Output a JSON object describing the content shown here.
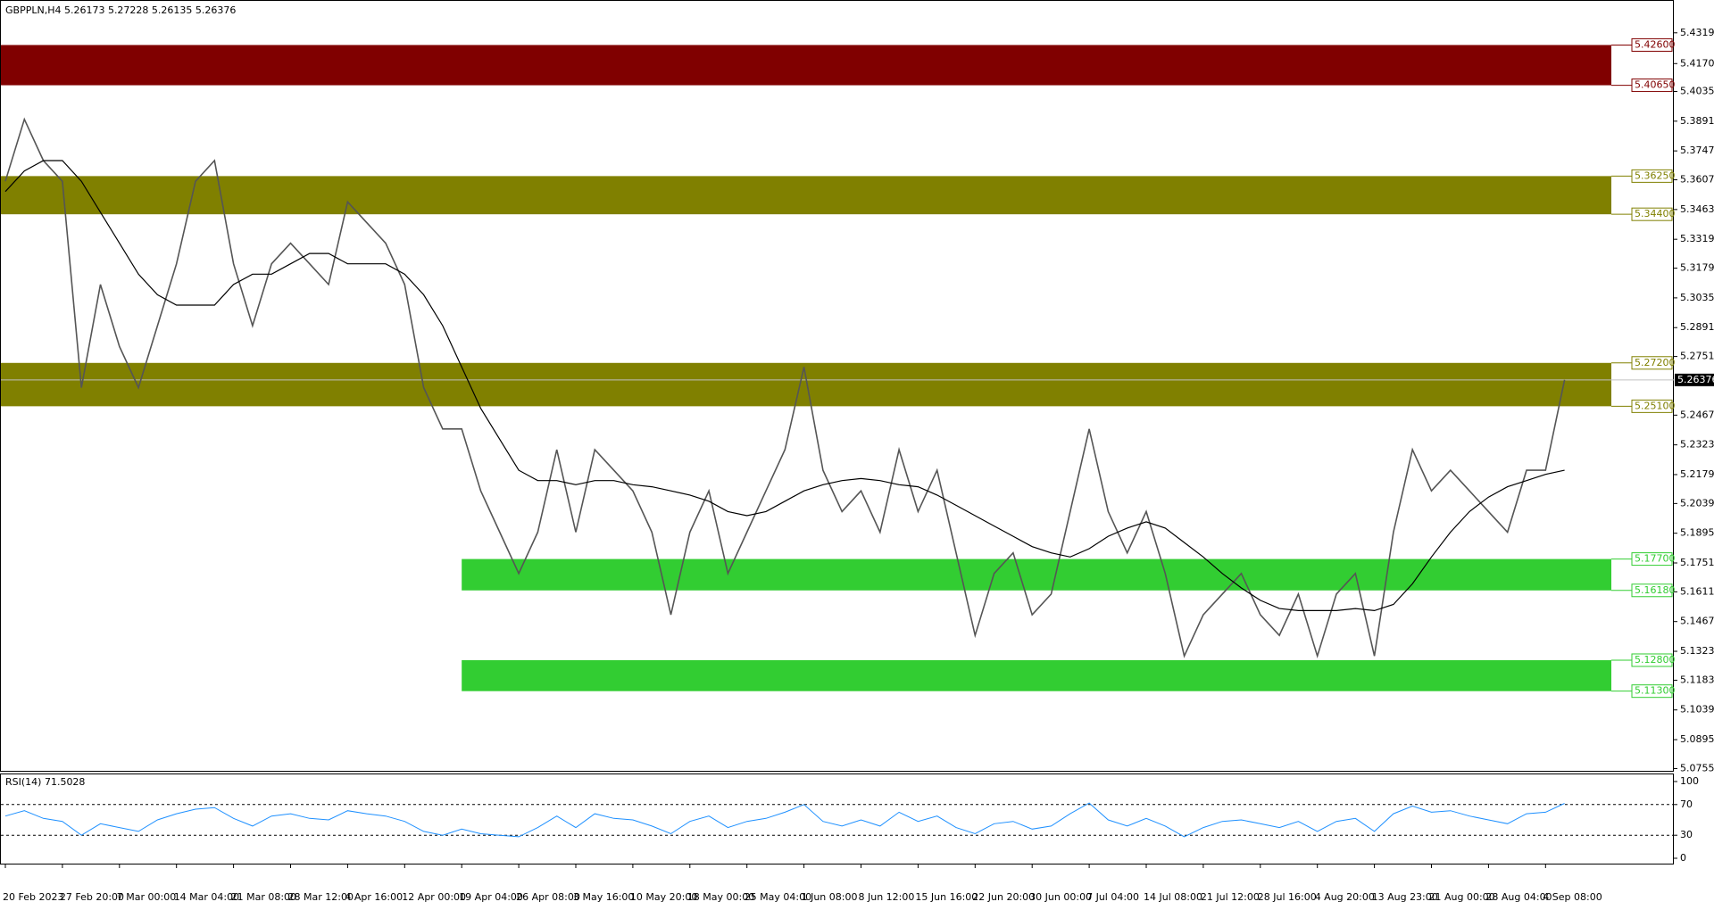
{
  "chart_data": [
    {
      "type": "price",
      "header": "GBPPLN,H4  5.26173 5.27228 5.26135 5.26376",
      "categories": [
        "20 Feb 2023",
        null,
        null,
        "27 Feb 20:00",
        null,
        null,
        "7 Mar 00:00",
        null,
        null,
        "14 Mar 04:00",
        null,
        null,
        "21 Mar 08:00",
        null,
        null,
        "28 Mar 12:00",
        null,
        null,
        "4 Apr 16:00",
        null,
        null,
        "12 Apr 00:00",
        null,
        null,
        "19 Apr 04:00",
        null,
        null,
        "26 Apr 08:00",
        null,
        null,
        "3 May 16:00",
        null,
        null,
        "10 May 20:00",
        null,
        null,
        "18 May 00:00",
        null,
        null,
        "25 May 04:00",
        null,
        null,
        "1 Jun 08:00",
        null,
        null,
        "8 Jun 12:00",
        null,
        null,
        "15 Jun 16:00",
        null,
        null,
        "22 Jun 20:00",
        null,
        null,
        "30 Jun 00:00",
        null,
        null,
        "7 Jul 04:00",
        null,
        null,
        "14 Jul 08:00",
        null,
        null,
        "21 Jul 12:00",
        null,
        null,
        "28 Jul 16:00",
        null,
        null,
        "4 Aug 20:00",
        null,
        null,
        "13 Aug 23:00",
        null,
        null,
        "21 Aug 00:00",
        null,
        null,
        "28 Aug 04:00",
        null,
        null,
        "4 Sep 08:00",
        null
      ],
      "series": [
        {
          "name": "GBPPLN",
          "color": "#555555",
          "values": [
            5.36,
            5.39,
            5.37,
            5.36,
            5.26,
            5.31,
            5.28,
            5.26,
            5.29,
            5.32,
            5.36,
            5.37,
            5.32,
            5.29,
            5.32,
            5.33,
            5.32,
            5.31,
            5.35,
            5.34,
            5.33,
            5.31,
            5.26,
            5.24,
            5.24,
            5.21,
            5.19,
            5.17,
            5.19,
            5.23,
            5.19,
            5.23,
            5.22,
            5.21,
            5.19,
            5.15,
            5.19,
            5.21,
            5.17,
            5.19,
            5.21,
            5.23,
            5.27,
            5.22,
            5.2,
            5.21,
            5.19,
            5.23,
            5.2,
            5.22,
            5.18,
            5.14,
            5.17,
            5.18,
            5.15,
            5.16,
            5.2,
            5.24,
            5.2,
            5.18,
            5.2,
            5.17,
            5.13,
            5.15,
            5.16,
            5.17,
            5.15,
            5.14,
            5.16,
            5.13,
            5.16,
            5.17,
            5.13,
            5.19,
            5.23,
            5.21,
            5.22,
            5.21,
            5.2,
            5.19,
            5.22,
            5.22,
            5.26376
          ]
        },
        {
          "name": "MA",
          "color": "#000000",
          "values": [
            5.355,
            5.365,
            5.37,
            5.37,
            5.36,
            5.345,
            5.33,
            5.315,
            5.305,
            5.3,
            5.3,
            5.3,
            5.31,
            5.315,
            5.315,
            5.32,
            5.325,
            5.325,
            5.32,
            5.32,
            5.32,
            5.315,
            5.305,
            5.29,
            5.27,
            5.25,
            5.235,
            5.22,
            5.215,
            5.215,
            5.213,
            5.215,
            5.215,
            5.213,
            5.212,
            5.21,
            5.208,
            5.205,
            5.2,
            5.198,
            5.2,
            5.205,
            5.21,
            5.213,
            5.215,
            5.216,
            5.215,
            5.213,
            5.212,
            5.208,
            5.203,
            5.198,
            5.193,
            5.188,
            5.183,
            5.18,
            5.178,
            5.182,
            5.188,
            5.192,
            5.195,
            5.192,
            5.185,
            5.178,
            5.17,
            5.163,
            5.157,
            5.153,
            5.152,
            5.152,
            5.152,
            5.153,
            5.152,
            5.155,
            5.165,
            5.178,
            5.19,
            5.2,
            5.207,
            5.212,
            5.215,
            5.218,
            5.22
          ]
        }
      ],
      "ylim": [
        5.0744,
        5.4478
      ],
      "yticks": [
        {
          "value": 5.4319,
          "label": "5.43190"
        },
        {
          "value": 5.417,
          "label": "5.41700"
        },
        {
          "value": 5.4035,
          "label": "5.40350"
        },
        {
          "value": 5.3891,
          "label": "5.38910"
        },
        {
          "value": 5.3747,
          "label": "5.37470"
        },
        {
          "value": 5.3607,
          "label": "5.36070"
        },
        {
          "value": 5.3463,
          "label": "5.34630"
        },
        {
          "value": 5.3319,
          "label": "5.33190"
        },
        {
          "value": 5.3179,
          "label": "5.31790"
        },
        {
          "value": 5.3035,
          "label": "5.30350"
        },
        {
          "value": 5.2891,
          "label": "5.28910"
        },
        {
          "value": 5.2751,
          "label": "5.27510"
        },
        {
          "value": 5.2467,
          "label": "5.24670"
        },
        {
          "value": 5.2323,
          "label": "5.23230"
        },
        {
          "value": 5.2179,
          "label": "5.21790"
        },
        {
          "value": 5.2039,
          "label": "5.20390"
        },
        {
          "value": 5.1895,
          "label": "5.18950"
        },
        {
          "value": 5.1751,
          "label": "5.17510"
        },
        {
          "value": 5.1611,
          "label": "5.16110"
        },
        {
          "value": 5.1467,
          "label": "5.14670"
        },
        {
          "value": 5.1323,
          "label": "5.13230"
        },
        {
          "value": 5.1183,
          "label": "5.11830"
        },
        {
          "value": 5.1039,
          "label": "5.10390"
        },
        {
          "value": 5.0895,
          "label": "5.08950"
        },
        {
          "value": 5.0755,
          "label": "5.07550"
        }
      ],
      "zones": [
        {
          "top": {
            "value": 5.426,
            "label": "5.42600"
          },
          "bottom": {
            "value": 5.4065,
            "label": "5.40650"
          },
          "color": "#800000",
          "label_color": "#800000"
        },
        {
          "top": {
            "value": 5.3625,
            "label": "5.36250"
          },
          "bottom": {
            "value": 5.344,
            "label": "5.34400"
          },
          "color": "#808000",
          "label_color": "#808000"
        },
        {
          "top": {
            "value": 5.272,
            "label": "5.27200"
          },
          "bottom": {
            "value": 5.251,
            "label": "5.25100"
          },
          "color": "#808000",
          "label_color": "#808000"
        },
        {
          "top": {
            "value": 5.177,
            "label": "5.17700"
          },
          "bottom": {
            "value": 5.1618,
            "label": "5.16180"
          },
          "color": "#32cd32",
          "label_color": "#32cd32",
          "start": "19 Apr 04:00"
        },
        {
          "top": {
            "value": 5.128,
            "label": "5.12800"
          },
          "bottom": {
            "value": 5.113,
            "label": "5.11300"
          },
          "color": "#32cd32",
          "label_color": "#32cd32",
          "start": "19 Apr 04:00"
        }
      ],
      "last_price": {
        "value": 5.26376,
        "label": "5.26376"
      }
    },
    {
      "type": "rsi",
      "title": "RSI(14) 71.5028",
      "series": [
        {
          "name": "RSI",
          "color": "#1e90ff",
          "values": [
            55,
            62,
            52,
            48,
            30,
            45,
            40,
            35,
            50,
            58,
            64,
            66,
            52,
            42,
            55,
            58,
            52,
            50,
            62,
            58,
            55,
            48,
            35,
            30,
            38,
            32,
            30,
            28,
            40,
            55,
            40,
            58,
            52,
            50,
            42,
            32,
            48,
            55,
            40,
            48,
            52,
            60,
            70,
            48,
            42,
            50,
            42,
            60,
            48,
            55,
            40,
            32,
            45,
            48,
            38,
            42,
            58,
            72,
            50,
            42,
            52,
            42,
            28,
            40,
            48,
            50,
            45,
            40,
            48,
            35,
            48,
            52,
            35,
            58,
            68,
            60,
            62,
            55,
            50,
            45,
            58,
            60,
            71.5028
          ]
        }
      ],
      "ylim": [
        0,
        100
      ],
      "yticks": [
        100,
        70,
        30,
        0
      ],
      "levels": [
        70,
        30
      ]
    }
  ]
}
